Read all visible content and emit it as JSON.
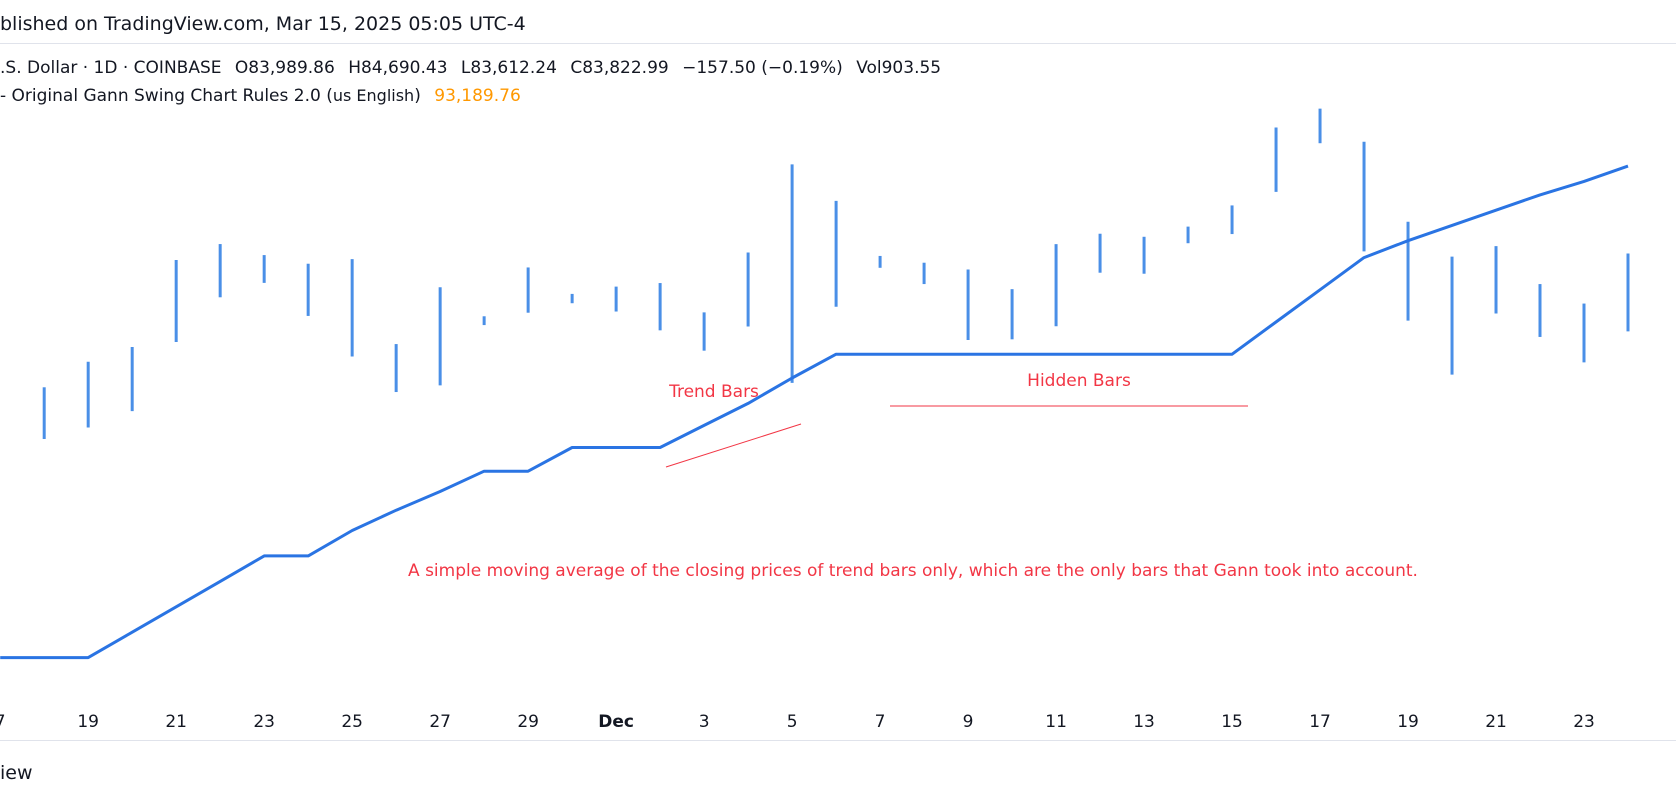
{
  "header": {
    "published": "blished on TradingView.com, Mar 15, 2025 05:05 UTC-4"
  },
  "legend": {
    "symbol": ".S. Dollar · 1D · COINBASE",
    "open": "O83,989.86",
    "high": "H84,690.43",
    "low": "L83,612.24",
    "close": "C83,822.99",
    "change": "−157.50 (−0.19%)",
    "volume": "Vol903.55",
    "indicator_name": "- Original Gann Swing Chart Rules 2.0 (",
    "indicator_lang": "us English",
    "indicator_close": ")",
    "indicator_value": "93,189.76"
  },
  "footer": {
    "brand": "iew"
  },
  "colors": {
    "bars": "#4a8fe7",
    "ma_line": "#2a74e3",
    "annotation": "#f23645",
    "indicator_value": "#ff9800"
  },
  "chart_data": {
    "type": "line",
    "x": [
      "Nov 17",
      "Nov 18",
      "Nov 19",
      "Nov 20",
      "Nov 21",
      "Nov 22",
      "Nov 23",
      "Nov 24",
      "Nov 25",
      "Nov 26",
      "Nov 27",
      "Nov 28",
      "Nov 29",
      "Nov 30",
      "Dec 1",
      "Dec 2",
      "Dec 3",
      "Dec 4",
      "Dec 5",
      "Dec 6",
      "Dec 7",
      "Dec 8",
      "Dec 9",
      "Dec 10",
      "Dec 11",
      "Dec 12",
      "Dec 13",
      "Dec 14",
      "Dec 15",
      "Dec 16",
      "Dec 17",
      "Dec 18",
      "Dec 19",
      "Dec 20",
      "Dec 21",
      "Dec 22",
      "Dec 23",
      "Dec 24"
    ],
    "x_ticks": [
      "7",
      "19",
      "21",
      "23",
      "25",
      "27",
      "29",
      "Dec",
      "3",
      "5",
      "7",
      "9",
      "11",
      "13",
      "15",
      "17",
      "19",
      "21",
      "23"
    ],
    "bar_series": {
      "name": "",
      "high": [
        null,
        91450,
        92960,
        93830,
        98960,
        99900,
        99250,
        98740,
        99010,
        94000,
        97350,
        95640,
        98520,
        96960,
        97390,
        97600,
        95870,
        99400,
        104600,
        102450,
        99200,
        98800,
        98400,
        97240,
        99900,
        100510,
        100330,
        100930,
        102180,
        106780,
        107890,
        105940,
        101220,
        99160,
        99780,
        97540,
        96390,
        99340
      ],
      "low": [
        null,
        88400,
        89080,
        90040,
        94120,
        96760,
        97610,
        95660,
        93270,
        91170,
        91560,
        95120,
        95850,
        96410,
        95920,
        94810,
        93610,
        95040,
        91710,
        96200,
        98500,
        97540,
        94240,
        94280,
        95050,
        98210,
        98150,
        99950,
        100490,
        102980,
        105850,
        99470,
        95380,
        92200,
        95800,
        94420,
        92920,
        94750
      ]
    },
    "ma_series": {
      "name": "",
      "values": [
        75500,
        75500,
        75500,
        77000,
        78500,
        80000,
        81500,
        81500,
        83000,
        84200,
        85300,
        86500,
        86500,
        87900,
        87900,
        87900,
        89200,
        90500,
        92000,
        93400,
        93400,
        93400,
        93400,
        93400,
        93400,
        93400,
        93400,
        93400,
        93400,
        95300,
        97200,
        99100,
        100100,
        101000,
        101900,
        102800,
        103600,
        104500
      ]
    },
    "x_min_index": -0.05,
    "x_max_index": 37.5,
    "ylim": [
      73000,
      108400
    ],
    "annotations": [
      {
        "text": "Trend Bars",
        "at": "Dec 3"
      },
      {
        "text": "Hidden Bars",
        "at": "Dec 11"
      },
      {
        "text": "A simple moving average of the closing prices of trend bars only, which are the only bars that Gann took into account.",
        "at": "Dec 9"
      }
    ],
    "grid": false
  }
}
